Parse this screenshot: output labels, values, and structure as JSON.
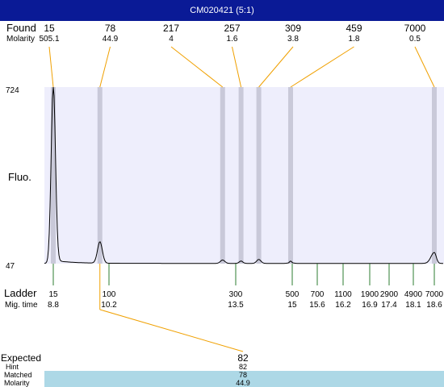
{
  "title": "CM020421 (5:1)",
  "labels": {
    "found": "Found",
    "molarity": "Molarity",
    "fluo": "Fluo.",
    "ladder": "Ladder",
    "mig_time": "Mig. time",
    "expected": "Expected",
    "hint": "Hint",
    "matched": "Matched",
    "molarity_bottom": "Molarity"
  },
  "colors": {
    "title_bar": "#0a1a96",
    "plot_bg": "#eeeefc",
    "peak_band": "#c9c9d9",
    "connector": "#f0a000",
    "ladder_tick": "#2e7d32",
    "matched_bar": "#add8e6"
  },
  "chart_data": {
    "type": "line",
    "ylabel": "Fluo.",
    "ylim": [
      47,
      724
    ],
    "y_ticks": [
      "724",
      "47"
    ],
    "found_peaks": [
      {
        "size": "15",
        "molarity": "505.1",
        "mig_time": 8.8,
        "height": 724
      },
      {
        "size": "78",
        "molarity": "44.9",
        "mig_time": 10.3,
        "height": 130
      },
      {
        "size": "217",
        "molarity": "4",
        "mig_time": 13.2,
        "height": 61
      },
      {
        "size": "257",
        "molarity": "1.6",
        "mig_time": 13.65,
        "height": 57
      },
      {
        "size": "309",
        "molarity": "3.8",
        "mig_time": 14.15,
        "height": 63
      },
      {
        "size": "459",
        "molarity": "1.8",
        "mig_time": 15.1,
        "height": 57
      },
      {
        "size": "7000",
        "molarity": "0.5",
        "mig_time": 18.6,
        "height": 90
      }
    ],
    "ladder": [
      {
        "size": "15",
        "mig_time": "8.8",
        "t": 8.8
      },
      {
        "size": "100",
        "mig_time": "10.2",
        "t": 10.6
      },
      {
        "size": "300",
        "mig_time": "13.5",
        "t": 13.5
      },
      {
        "size": "500",
        "mig_time": "15",
        "t": 15.2
      },
      {
        "size": "700",
        "mig_time": "15.6",
        "t": 15.8
      },
      {
        "size": "1100",
        "mig_time": "16.2",
        "t": 16.35
      },
      {
        "size": "1900",
        "mig_time": "16.9",
        "t": 17.0
      },
      {
        "size": "2900",
        "mig_time": "17.4",
        "t": 17.4
      },
      {
        "size": "4900",
        "mig_time": "18.1",
        "t": 18.1
      },
      {
        "size": "7000",
        "mig_time": "18.6",
        "t": 18.6
      }
    ],
    "expected": {
      "value": "82",
      "hint": "82",
      "matched": "78",
      "molarity": "44.9",
      "mig_time": 10.3
    }
  }
}
